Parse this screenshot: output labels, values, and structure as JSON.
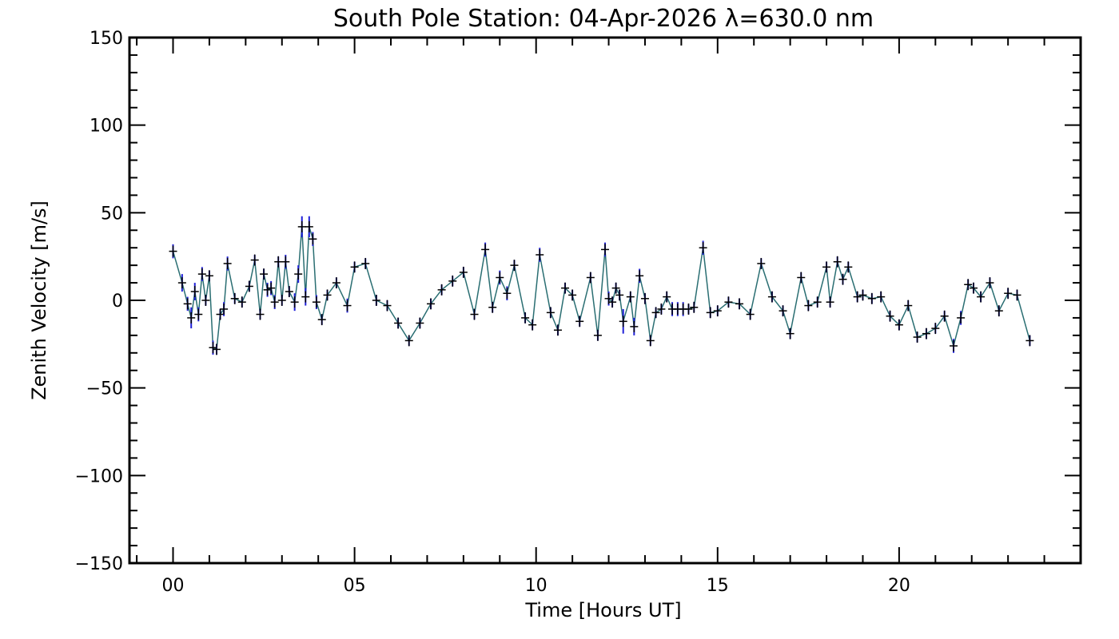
{
  "chart_data": {
    "type": "line",
    "title": "South Pole Station: 04-Apr-2026 λ=630.0 nm",
    "xlabel": "Time [Hours UT]",
    "ylabel": "Zenith Velocity [m/s]",
    "xlim": [
      -1.2,
      25
    ],
    "ylim": [
      -150,
      150
    ],
    "x_ticks": [
      0,
      5,
      10,
      15,
      20
    ],
    "x_tick_labels": [
      "00",
      "05",
      "10",
      "15",
      "20"
    ],
    "y_ticks": [
      -150,
      -100,
      -50,
      0,
      50,
      100,
      150
    ],
    "y_tick_labels": [
      "−150",
      "−100",
      "−50",
      "0",
      "50",
      "100",
      "150"
    ],
    "grid": false,
    "colors": {
      "line": "#2a6e72",
      "error_bar": "#2020d8",
      "marker": "#000000",
      "axes": "#000000"
    },
    "series": [
      {
        "x": [
          0.0,
          0.25,
          0.4,
          0.5,
          0.6,
          0.7,
          0.8,
          0.9,
          1.0,
          1.1,
          1.2,
          1.3,
          1.4,
          1.5,
          1.7,
          1.9,
          2.1,
          2.25,
          2.4,
          2.5,
          2.6,
          2.7,
          2.8,
          2.9,
          3.0,
          3.1,
          3.2,
          3.35,
          3.45,
          3.55,
          3.65,
          3.75,
          3.85,
          3.95,
          4.1,
          4.25,
          4.5,
          4.8,
          5.0,
          5.3,
          5.6,
          5.9,
          6.2,
          6.5,
          6.8,
          7.1,
          7.4,
          7.7,
          8.0,
          8.3,
          8.6,
          8.8,
          9.0,
          9.2,
          9.4,
          9.7,
          9.9,
          10.1,
          10.4,
          10.6,
          10.8,
          11.0,
          11.2,
          11.5,
          11.7,
          11.9,
          12.0,
          12.1,
          12.2,
          12.3,
          12.4,
          12.6,
          12.7,
          12.85,
          13.0,
          13.15,
          13.3,
          13.45,
          13.6,
          13.75,
          13.9,
          14.05,
          14.2,
          14.35,
          14.6,
          14.8,
          15.0,
          15.3,
          15.6,
          15.9,
          16.2,
          16.5,
          16.8,
          17.0,
          17.3,
          17.5,
          17.75,
          18.0,
          18.1,
          18.3,
          18.45,
          18.6,
          18.85,
          19.0,
          19.25,
          19.5,
          19.75,
          20.0,
          20.25,
          20.5,
          20.75,
          21.0,
          21.25,
          21.5,
          21.7,
          21.9,
          22.05,
          22.25,
          22.5,
          22.75,
          23.0,
          23.25,
          23.6
        ],
        "y": [
          28,
          10,
          -2,
          -10,
          5,
          -8,
          15,
          0,
          14,
          -27,
          -28,
          -8,
          -5,
          21,
          1,
          -1,
          8,
          23,
          -8,
          15,
          6,
          7,
          -1,
          22,
          0,
          22,
          5,
          -1,
          15,
          42,
          2,
          42,
          35,
          -1,
          -11,
          3,
          10,
          -3,
          19,
          21,
          0,
          -3,
          -13,
          -23,
          -13,
          -2,
          6,
          11,
          16,
          -8,
          29,
          -4,
          13,
          4,
          20,
          -10,
          -14,
          26,
          -7,
          -17,
          7,
          3,
          -12,
          13,
          -20,
          29,
          1,
          -1,
          7,
          3,
          -12,
          2,
          -15,
          14,
          1,
          -23,
          -7,
          -5,
          2,
          -5,
          -5,
          -5,
          -5,
          -4,
          30,
          -7,
          -6,
          -1,
          -2,
          -8,
          21,
          2,
          -6,
          -19,
          13,
          -3,
          -1,
          19,
          -1,
          22,
          12,
          19,
          2,
          3,
          1,
          2,
          -9,
          -14,
          -3,
          -21,
          -19,
          -16,
          -9,
          -26,
          -10,
          9,
          7,
          2,
          10,
          -6,
          4,
          3,
          -23
        ],
        "err": [
          4,
          5,
          4,
          6,
          5,
          4,
          4,
          3,
          3,
          4,
          3,
          3,
          4,
          4,
          3,
          3,
          3,
          3,
          3,
          3,
          4,
          4,
          4,
          3,
          3,
          4,
          3,
          5,
          5,
          6,
          5,
          6,
          4,
          4,
          3,
          3,
          3,
          4,
          3,
          3,
          3,
          3,
          3,
          3,
          3,
          3,
          3,
          3,
          3,
          3,
          4,
          3,
          4,
          4,
          3,
          3,
          3,
          4,
          3,
          3,
          3,
          3,
          3,
          3,
          3,
          4,
          4,
          3,
          3,
          3,
          7,
          3,
          5,
          4,
          3,
          3,
          3,
          3,
          3,
          4,
          4,
          4,
          3,
          3,
          4,
          3,
          3,
          3,
          3,
          3,
          3,
          3,
          3,
          3,
          3,
          3,
          3,
          3,
          3,
          3,
          3,
          3,
          3,
          3,
          3,
          3,
          3,
          3,
          3,
          3,
          3,
          3,
          3,
          4,
          4,
          3,
          3,
          3,
          3,
          3,
          3,
          3,
          3
        ]
      }
    ]
  }
}
